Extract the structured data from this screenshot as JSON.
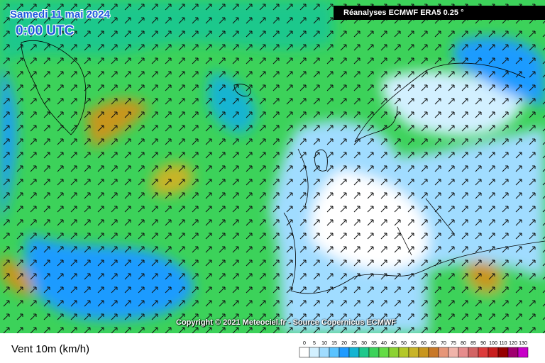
{
  "header": {
    "date": "Samedi 11 mai 2024",
    "time": "0:00 UTC",
    "source": "Réanalyses ECMWF ERA5 0.25 °"
  },
  "copyright": "Copyright © 2021 Meteociel.fr - Source Copernicus ECMWF",
  "footer": {
    "variable": "Vent 10m (km/h)"
  },
  "legend": {
    "ticks": [
      0,
      5,
      10,
      15,
      20,
      25,
      30,
      35,
      40,
      45,
      50,
      55,
      60,
      65,
      70,
      75,
      80,
      85,
      90,
      100,
      110,
      120,
      130
    ],
    "colors": [
      "#ffffff",
      "#d2f0ff",
      "#a0dcff",
      "#5ac3ff",
      "#1e9bff",
      "#14b4d2",
      "#1ec88c",
      "#3cd25a",
      "#64dc46",
      "#8cd232",
      "#b4c828",
      "#c8b428",
      "#c8961e",
      "#c87828",
      "#e69678",
      "#f0b4aa",
      "#e68c8c",
      "#d26464",
      "#dc3c3c",
      "#c81e1e",
      "#960000",
      "#a0006e",
      "#c800c8"
    ]
  }
}
